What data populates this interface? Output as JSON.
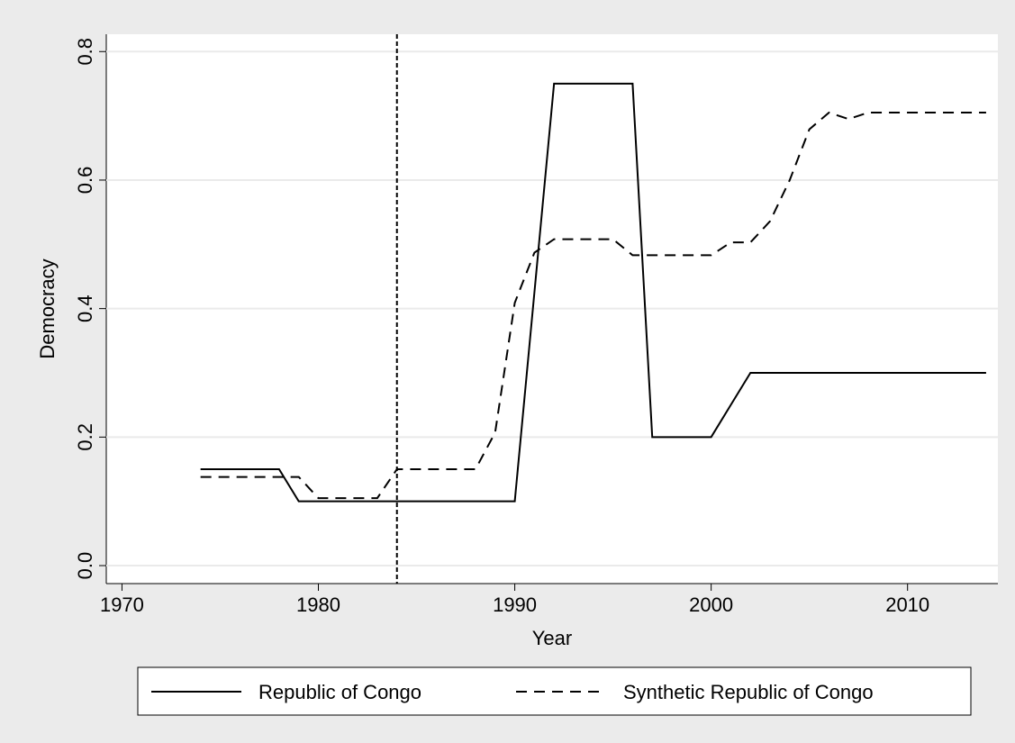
{
  "chart_data": {
    "type": "line",
    "x_label": "Year",
    "y_label": "Democracy",
    "x": [
      1974,
      1975,
      1976,
      1977,
      1978,
      1979,
      1980,
      1981,
      1982,
      1983,
      1984,
      1985,
      1986,
      1987,
      1988,
      1989,
      1990,
      1991,
      1992,
      1993,
      1994,
      1995,
      1996,
      1997,
      1998,
      1999,
      2000,
      2001,
      2002,
      2003,
      2004,
      2005,
      2006,
      2007,
      2008,
      2009,
      2010,
      2011,
      2012,
      2013,
      2014
    ],
    "series": [
      {
        "name": "Republic of Congo",
        "color": "#000000",
        "dash": "solid",
        "values": [
          0.15,
          0.15,
          0.15,
          0.15,
          0.15,
          0.1,
          0.1,
          0.1,
          0.1,
          0.1,
          0.1,
          0.1,
          0.1,
          0.1,
          0.1,
          0.1,
          0.1,
          0.425,
          0.75,
          0.75,
          0.75,
          0.75,
          0.75,
          0.2,
          0.2,
          0.2,
          0.2,
          0.25,
          0.3,
          0.3,
          0.3,
          0.3,
          0.3,
          0.3,
          0.3,
          0.3,
          0.3,
          0.3,
          0.3,
          0.3,
          0.3
        ]
      },
      {
        "name": "Synthetic Republic of Congo",
        "color": "#000000",
        "dash": "dashed",
        "values": [
          0.138,
          0.138,
          0.138,
          0.138,
          0.138,
          0.138,
          0.105,
          0.105,
          0.105,
          0.105,
          0.15,
          0.15,
          0.15,
          0.15,
          0.15,
          0.207,
          0.409,
          0.487,
          0.508,
          0.508,
          0.508,
          0.508,
          0.483,
          0.483,
          0.483,
          0.483,
          0.483,
          0.503,
          0.503,
          0.536,
          0.6,
          0.679,
          0.705,
          0.695,
          0.705,
          0.705,
          0.705,
          0.705,
          0.705,
          0.705,
          0.705
        ]
      }
    ],
    "vline": 1984,
    "xlim": [
      1969.2,
      2014.6
    ],
    "xticks": [
      1970,
      1980,
      1990,
      2000,
      2010
    ],
    "ylim": [
      -0.028,
      0.827
    ],
    "yticks": [
      {
        "value": 0,
        "label": "0.0"
      },
      {
        "value": 0.2,
        "label": "0.2"
      },
      {
        "value": 0.4,
        "label": "0.4"
      },
      {
        "value": 0.6,
        "label": "0.6"
      },
      {
        "value": 0.8,
        "label": "0.8"
      }
    ],
    "grid": true,
    "legend": "bottom"
  }
}
